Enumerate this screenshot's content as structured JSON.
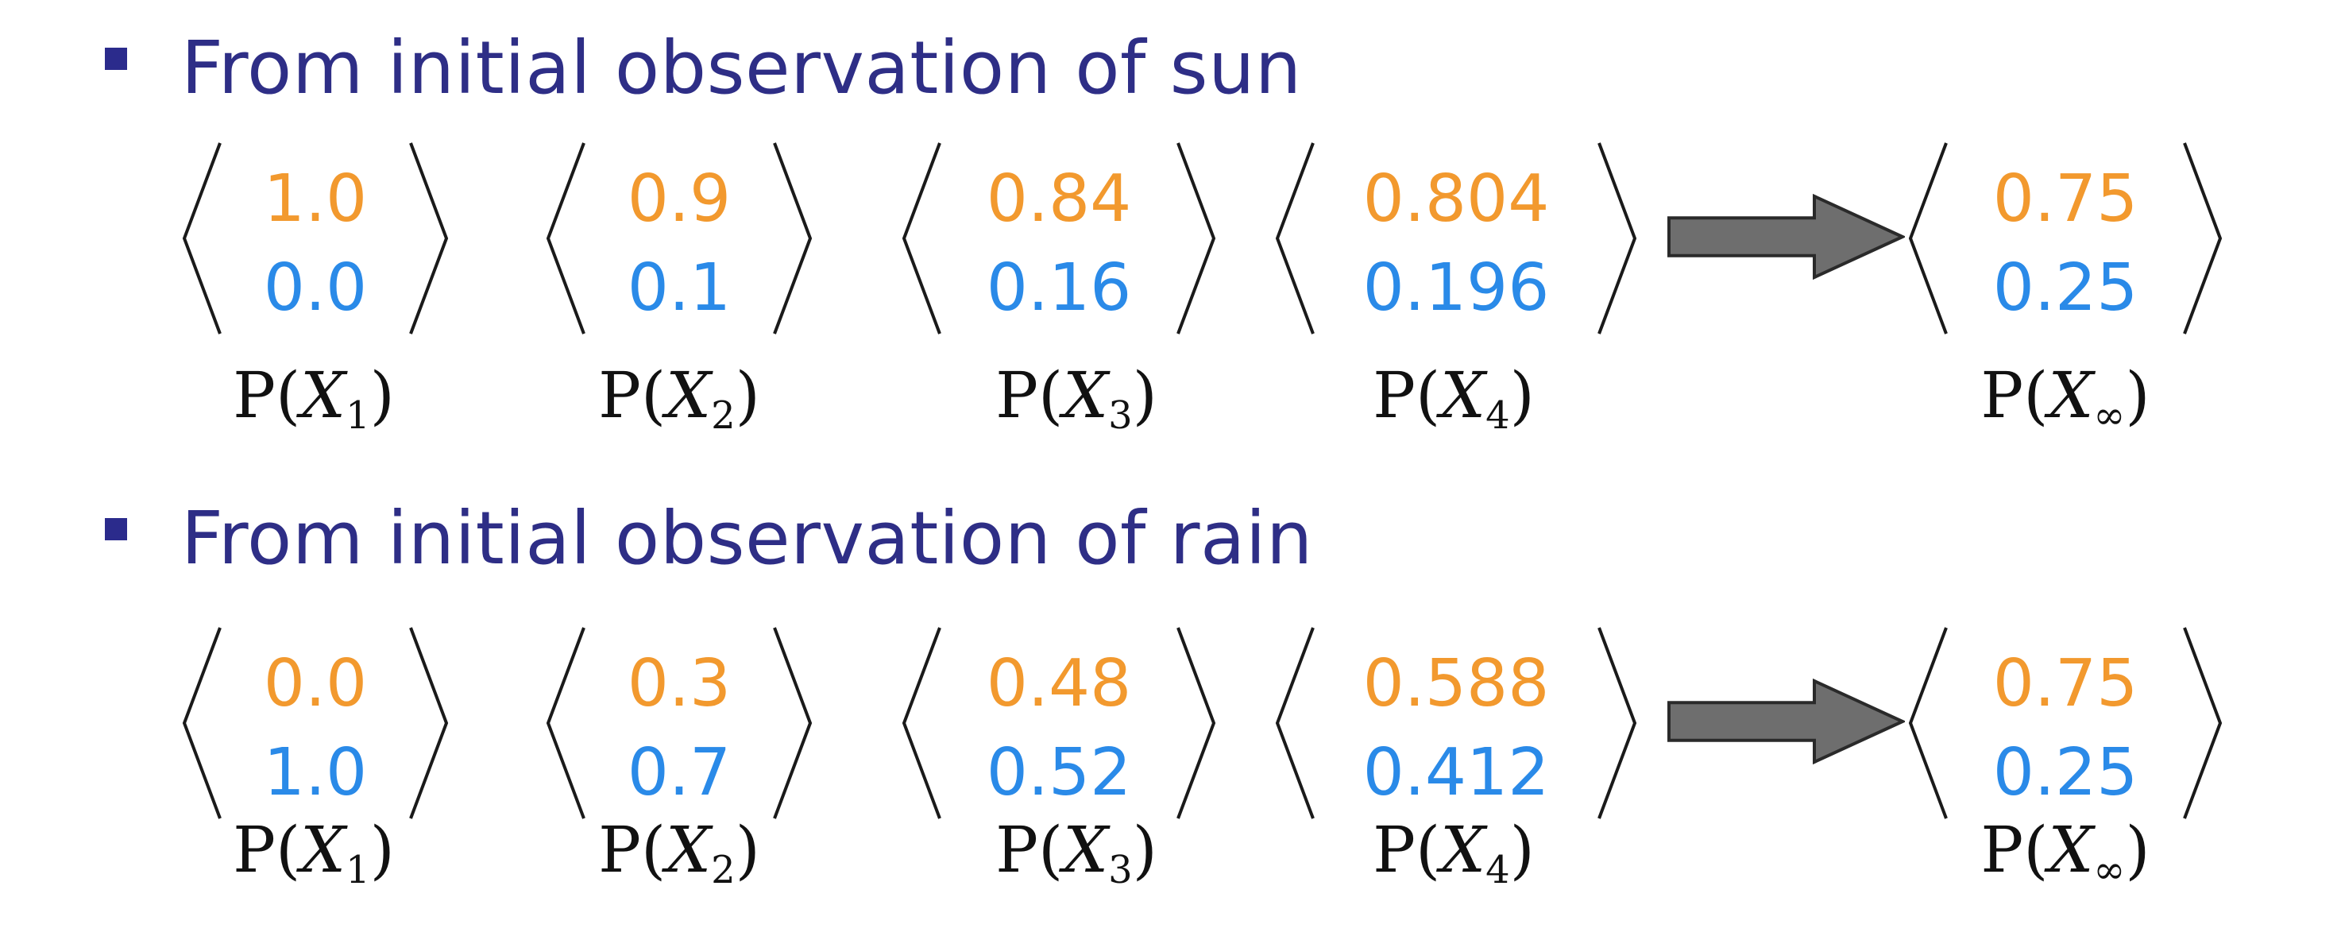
{
  "colors": {
    "heading": "#2e2e86",
    "bullet": "#2b2b8c",
    "sun_value": "#f2992e",
    "rain_value": "#2a8ae8",
    "bracket": "#1a1a1a",
    "arrow_fill": "#6e6e6e",
    "arrow_stroke": "#2a2a2a",
    "label": "#111111"
  },
  "sections": [
    {
      "heading": "From initial observation of sun",
      "vectors": [
        {
          "top": "1.0",
          "bottom": "0.0",
          "label": "P(",
          "var": "X",
          "sub": "1",
          "close": ")"
        },
        {
          "top": "0.9",
          "bottom": "0.1",
          "label": "P(",
          "var": "X",
          "sub": "2",
          "close": ")"
        },
        {
          "top": "0.84",
          "bottom": "0.16",
          "label": "P(",
          "var": "X",
          "sub": "3",
          "close": ")"
        },
        {
          "top": "0.804",
          "bottom": "0.196",
          "label": "P(",
          "var": "X",
          "sub": "4",
          "close": ")"
        },
        {
          "top": "0.75",
          "bottom": "0.25",
          "label": "P(",
          "var": "X",
          "sub": "∞",
          "close": ")"
        }
      ]
    },
    {
      "heading": "From initial observation of rain",
      "vectors": [
        {
          "top": "0.0",
          "bottom": "1.0",
          "label": "P(",
          "var": "X",
          "sub": "1",
          "close": ")"
        },
        {
          "top": "0.3",
          "bottom": "0.7",
          "label": "P(",
          "var": "X",
          "sub": "2",
          "close": ")"
        },
        {
          "top": "0.48",
          "bottom": "0.52",
          "label": "P(",
          "var": "X",
          "sub": "3",
          "close": ")"
        },
        {
          "top": "0.588",
          "bottom": "0.412",
          "label": "P(",
          "var": "X",
          "sub": "4",
          "close": ")"
        },
        {
          "top": "0.75",
          "bottom": "0.25",
          "label": "P(",
          "var": "X",
          "sub": "∞",
          "close": ")"
        }
      ]
    }
  ]
}
